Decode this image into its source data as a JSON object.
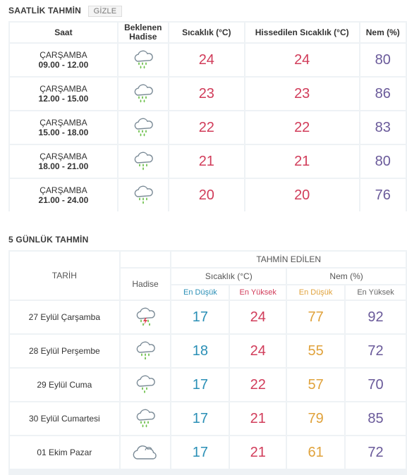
{
  "hourly": {
    "title": "SAATLİK TAHMİN",
    "toggle_label": "GİZLE",
    "headers": {
      "time": "Saat",
      "event": "Beklenen Hadise",
      "temp": "Sıcaklık (°C)",
      "feels": "Hissedilen Sıcaklık (°C)",
      "humidity": "Nem (%)"
    },
    "rows": [
      {
        "day": "ÇARŞAMBA",
        "range": "09.00 - 12.00",
        "icon": "heavy-rain-cloud-icon",
        "temp": "24",
        "feels": "24",
        "humidity": "80"
      },
      {
        "day": "ÇARŞAMBA",
        "range": "12.00 - 15.00",
        "icon": "heavy-rain-cloud-icon",
        "temp": "23",
        "feels": "23",
        "humidity": "86"
      },
      {
        "day": "ÇARŞAMBA",
        "range": "15.00 - 18.00",
        "icon": "heavy-rain-cloud-icon",
        "temp": "22",
        "feels": "22",
        "humidity": "83"
      },
      {
        "day": "ÇARŞAMBA",
        "range": "18.00 - 21.00",
        "icon": "rain-cloud-icon",
        "temp": "21",
        "feels": "21",
        "humidity": "80"
      },
      {
        "day": "ÇARŞAMBA",
        "range": "21.00 - 24.00",
        "icon": "rain-cloud-icon",
        "temp": "20",
        "feels": "20",
        "humidity": "76"
      }
    ]
  },
  "daily": {
    "title": "5 GÜNLÜK TAHMİN",
    "headers": {
      "date": "TARİH",
      "event": "Hadise",
      "predicted": "TAHMİN EDİLEN",
      "temp": "Sıcaklık (°C)",
      "humidity": "Nem (%)",
      "min": "En Düşük",
      "max": "En Yüksek"
    },
    "rows": [
      {
        "date": "27 Eylül Çarşamba",
        "icon": "thunderstorm-rain-icon",
        "tmin": "17",
        "tmax": "24",
        "hmin": "77",
        "hmax": "92"
      },
      {
        "date": "28 Eylül Perşembe",
        "icon": "rain-cloud-icon",
        "tmin": "18",
        "tmax": "24",
        "hmin": "55",
        "hmax": "72"
      },
      {
        "date": "29 Eylül Cuma",
        "icon": "light-rain-cloud-icon",
        "tmin": "17",
        "tmax": "22",
        "hmin": "57",
        "hmax": "70"
      },
      {
        "date": "30 Eylül Cumartesi",
        "icon": "heavy-rain-cloud-icon",
        "tmin": "17",
        "tmax": "21",
        "hmin": "79",
        "hmax": "85"
      },
      {
        "date": "01 Ekim Pazar",
        "icon": "cloudy-icon",
        "tmin": "17",
        "tmax": "21",
        "hmin": "61",
        "hmax": "72"
      }
    ]
  },
  "colors": {
    "temp": "#d13c5a",
    "humidity": "#6a5a9a",
    "min_temp": "#2a8fb6",
    "min_humidity": "#e0a23b",
    "rain_drop": "#6cc04a",
    "cloud_stroke": "#7a8a96"
  }
}
